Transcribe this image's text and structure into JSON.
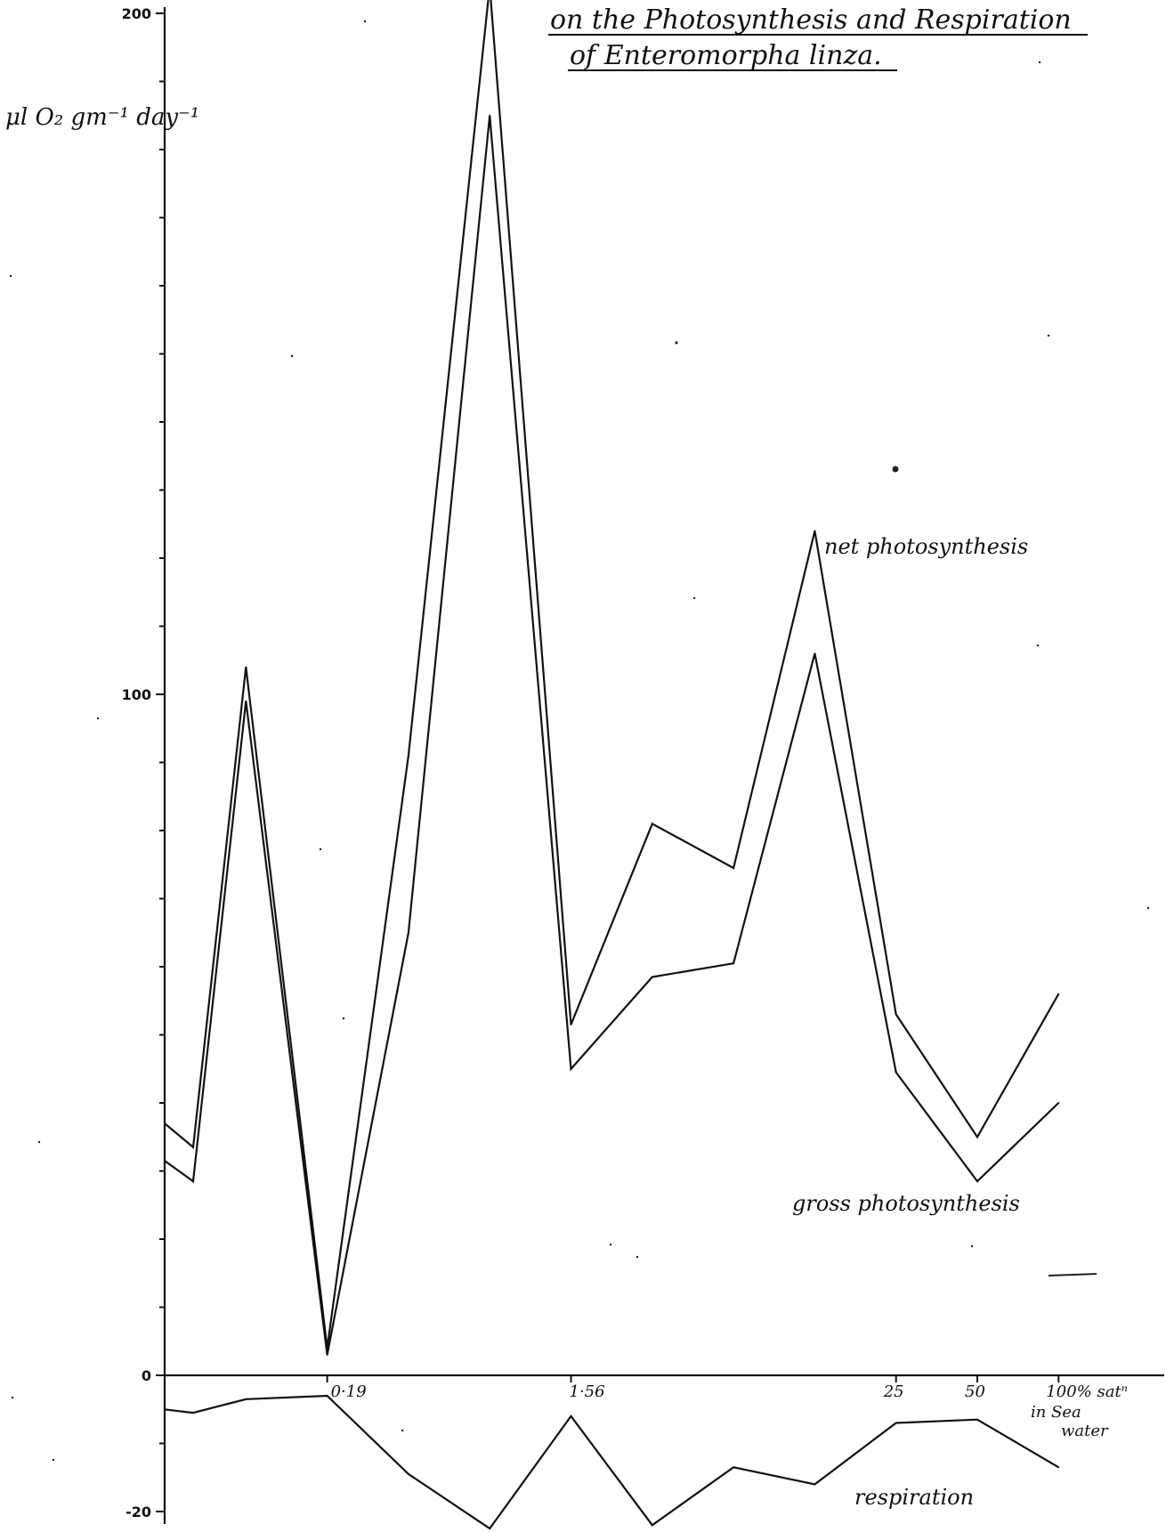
{
  "chart_data": {
    "type": "line",
    "title_lines": [
      "on the Photosynthesis and Respiration",
      "of Enteromorpha linza."
    ],
    "ylabel": "μl O₂ gm⁻¹ day⁻¹",
    "ytick_labels": [
      {
        "value": 200,
        "label": "200"
      },
      {
        "value": 100,
        "label": "100"
      },
      {
        "value": 0,
        "label": "0"
      },
      {
        "value": -20,
        "label": "-20"
      }
    ],
    "yminor_ticks": [
      190,
      180,
      170,
      160,
      150,
      140,
      130,
      120,
      110,
      90,
      80,
      70,
      60,
      50,
      40,
      30,
      20,
      10,
      -10
    ],
    "ylim": [
      -20,
      200
    ],
    "x_points": 12,
    "xtick_labels": [
      {
        "index": 2,
        "label": "0·19"
      },
      {
        "index": 5,
        "label": "1·56"
      },
      {
        "index": 9,
        "label": "25"
      },
      {
        "index": 10,
        "label": "50"
      },
      {
        "index": 11,
        "label": "100% satⁿ"
      }
    ],
    "xunit_label_lines": [
      "in Sea",
      "water"
    ],
    "series": [
      {
        "name": "net photosynthesis",
        "x": [
          0,
          0.35,
          1,
          2,
          3,
          4,
          5,
          6,
          7,
          8,
          9,
          10,
          11
        ],
        "y": [
          37,
          33.5,
          104,
          4,
          91,
          204,
          51.5,
          81,
          74.5,
          124,
          53,
          35,
          56
        ]
      },
      {
        "name": "gross photosynthesis",
        "x": [
          0,
          0.35,
          1,
          2,
          3,
          4,
          5,
          6,
          7,
          8,
          9,
          10,
          11
        ],
        "y": [
          31.5,
          28.5,
          99,
          3,
          65,
          185,
          45,
          58.5,
          60.5,
          106,
          44.5,
          28.5,
          40
        ]
      },
      {
        "name": "respiration",
        "x": [
          0,
          0.35,
          1,
          2,
          3,
          4,
          5,
          6,
          7,
          8,
          9,
          10,
          11
        ],
        "y": [
          -5,
          -5.5,
          -3.5,
          -3,
          -14.5,
          -22.5,
          -6,
          -22,
          -13.5,
          -16,
          -7,
          -6.5,
          -13.5
        ]
      }
    ],
    "legend": "labels placed directly next to each line (net photosynthesis near its peak at right, gross photosynthesis below its right section, respiration near the bottom right)",
    "grid": false
  }
}
